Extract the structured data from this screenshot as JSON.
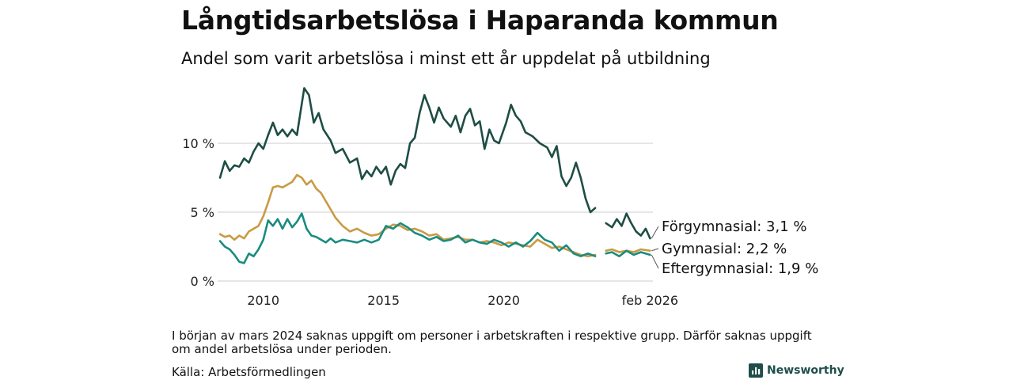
{
  "header": {
    "title": "Långtidsarbetslösa i Haparanda kommun",
    "subtitle": "Andel som varit arbetslösa i minst ett år uppdelat på utbildning"
  },
  "footer": {
    "note": "I början av mars 2024 saknas uppgift om personer i arbetskraften i respektive grupp. Därför saknas uppgift om andel arbetslösa under perioden.",
    "source": "Källa: Arbetsförmedlingen",
    "brand": "Newsworthy"
  },
  "colors": {
    "forgymnasial": "#1e4d44",
    "gymnasial": "#c99a45",
    "eftergymnasial": "#1a8c80",
    "grid": "#dddddd"
  },
  "chart_data": {
    "type": "line",
    "title": "Långtidsarbetslösa i Haparanda kommun",
    "ylabel": "",
    "xlabel": "",
    "ylim": [
      0,
      14
    ],
    "xlim": [
      2008.2,
      2026.2
    ],
    "yticks": [
      {
        "value": 0,
        "label": "0 %"
      },
      {
        "value": 5,
        "label": "5 %"
      },
      {
        "value": 10,
        "label": "10 %"
      }
    ],
    "xticks": [
      {
        "value": 2010,
        "label": "2010"
      },
      {
        "value": 2015,
        "label": "2015"
      },
      {
        "value": 2020,
        "label": "2020"
      },
      {
        "value": 2026.08,
        "label": "feb 2026"
      }
    ],
    "gap": [
      2024.05,
      2024.2
    ],
    "series": [
      {
        "name": "Förgymnasial",
        "color_key": "forgymnasial",
        "end_label": "Förgymnasial: 3,1 %",
        "points": [
          [
            2008.2,
            7.5
          ],
          [
            2008.4,
            8.7
          ],
          [
            2008.6,
            8.0
          ],
          [
            2008.8,
            8.4
          ],
          [
            2009.0,
            8.3
          ],
          [
            2009.2,
            8.9
          ],
          [
            2009.4,
            8.6
          ],
          [
            2009.6,
            9.4
          ],
          [
            2009.8,
            10.0
          ],
          [
            2010.0,
            9.6
          ],
          [
            2010.2,
            10.6
          ],
          [
            2010.4,
            11.5
          ],
          [
            2010.6,
            10.6
          ],
          [
            2010.8,
            11.0
          ],
          [
            2011.0,
            10.5
          ],
          [
            2011.2,
            11.0
          ],
          [
            2011.4,
            10.6
          ],
          [
            2011.7,
            14.0
          ],
          [
            2011.9,
            13.5
          ],
          [
            2012.1,
            11.5
          ],
          [
            2012.3,
            12.2
          ],
          [
            2012.5,
            11.0
          ],
          [
            2012.8,
            10.2
          ],
          [
            2013.0,
            9.3
          ],
          [
            2013.3,
            9.6
          ],
          [
            2013.6,
            8.6
          ],
          [
            2013.9,
            8.9
          ],
          [
            2014.1,
            7.4
          ],
          [
            2014.3,
            8.0
          ],
          [
            2014.5,
            7.6
          ],
          [
            2014.7,
            8.3
          ],
          [
            2014.9,
            7.8
          ],
          [
            2015.1,
            8.3
          ],
          [
            2015.3,
            7.0
          ],
          [
            2015.5,
            8.0
          ],
          [
            2015.7,
            8.5
          ],
          [
            2015.9,
            8.2
          ],
          [
            2016.1,
            10.0
          ],
          [
            2016.3,
            10.4
          ],
          [
            2016.5,
            12.2
          ],
          [
            2016.7,
            13.5
          ],
          [
            2016.9,
            12.6
          ],
          [
            2017.1,
            11.5
          ],
          [
            2017.3,
            12.6
          ],
          [
            2017.5,
            11.8
          ],
          [
            2017.8,
            11.2
          ],
          [
            2018.0,
            12.0
          ],
          [
            2018.2,
            10.8
          ],
          [
            2018.4,
            12.0
          ],
          [
            2018.6,
            12.5
          ],
          [
            2018.8,
            11.3
          ],
          [
            2019.0,
            11.6
          ],
          [
            2019.2,
            9.6
          ],
          [
            2019.4,
            11.0
          ],
          [
            2019.6,
            10.2
          ],
          [
            2019.8,
            10.0
          ],
          [
            2020.1,
            11.5
          ],
          [
            2020.3,
            12.8
          ],
          [
            2020.5,
            12.0
          ],
          [
            2020.7,
            11.6
          ],
          [
            2020.9,
            10.8
          ],
          [
            2021.2,
            10.5
          ],
          [
            2021.5,
            10.0
          ],
          [
            2021.8,
            9.7
          ],
          [
            2022.0,
            9.0
          ],
          [
            2022.2,
            9.8
          ],
          [
            2022.4,
            7.6
          ],
          [
            2022.6,
            6.9
          ],
          [
            2022.8,
            7.5
          ],
          [
            2023.0,
            8.6
          ],
          [
            2023.2,
            7.5
          ],
          [
            2023.4,
            6.0
          ],
          [
            2023.6,
            5.0
          ],
          [
            2023.8,
            5.3
          ],
          [
            2024.25,
            4.2
          ],
          [
            2024.5,
            3.9
          ],
          [
            2024.7,
            4.5
          ],
          [
            2024.9,
            4.0
          ],
          [
            2025.1,
            4.9
          ],
          [
            2025.3,
            4.2
          ],
          [
            2025.5,
            3.6
          ],
          [
            2025.7,
            3.3
          ],
          [
            2025.9,
            3.8
          ],
          [
            2026.08,
            3.1
          ]
        ]
      },
      {
        "name": "Gymnasial",
        "color_key": "gymnasial",
        "end_label": "Gymnasial: 2,2 %",
        "points": [
          [
            2008.2,
            3.4
          ],
          [
            2008.4,
            3.2
          ],
          [
            2008.6,
            3.3
          ],
          [
            2008.8,
            3.0
          ],
          [
            2009.0,
            3.3
          ],
          [
            2009.2,
            3.1
          ],
          [
            2009.4,
            3.6
          ],
          [
            2009.6,
            3.8
          ],
          [
            2009.8,
            4.0
          ],
          [
            2010.0,
            4.7
          ],
          [
            2010.2,
            5.7
          ],
          [
            2010.4,
            6.8
          ],
          [
            2010.6,
            6.9
          ],
          [
            2010.8,
            6.8
          ],
          [
            2011.0,
            7.0
          ],
          [
            2011.2,
            7.2
          ],
          [
            2011.4,
            7.7
          ],
          [
            2011.6,
            7.5
          ],
          [
            2011.8,
            7.0
          ],
          [
            2012.0,
            7.3
          ],
          [
            2012.2,
            6.7
          ],
          [
            2012.4,
            6.4
          ],
          [
            2012.6,
            5.8
          ],
          [
            2012.8,
            5.2
          ],
          [
            2013.0,
            4.6
          ],
          [
            2013.3,
            4.0
          ],
          [
            2013.6,
            3.6
          ],
          [
            2013.9,
            3.8
          ],
          [
            2014.2,
            3.5
          ],
          [
            2014.5,
            3.3
          ],
          [
            2014.8,
            3.4
          ],
          [
            2015.1,
            3.8
          ],
          [
            2015.4,
            4.1
          ],
          [
            2015.7,
            4.0
          ],
          [
            2016.0,
            3.7
          ],
          [
            2016.3,
            3.8
          ],
          [
            2016.6,
            3.6
          ],
          [
            2016.9,
            3.3
          ],
          [
            2017.2,
            3.4
          ],
          [
            2017.5,
            3.0
          ],
          [
            2017.8,
            3.1
          ],
          [
            2018.1,
            3.2
          ],
          [
            2018.4,
            3.0
          ],
          [
            2018.7,
            3.0
          ],
          [
            2019.0,
            2.8
          ],
          [
            2019.3,
            2.9
          ],
          [
            2019.6,
            2.8
          ],
          [
            2019.9,
            2.6
          ],
          [
            2020.2,
            2.8
          ],
          [
            2020.5,
            2.7
          ],
          [
            2020.8,
            2.6
          ],
          [
            2021.1,
            2.5
          ],
          [
            2021.4,
            3.0
          ],
          [
            2021.7,
            2.7
          ],
          [
            2022.0,
            2.4
          ],
          [
            2022.3,
            2.5
          ],
          [
            2022.6,
            2.3
          ],
          [
            2022.9,
            2.1
          ],
          [
            2023.2,
            1.9
          ],
          [
            2023.5,
            1.8
          ],
          [
            2023.8,
            1.9
          ],
          [
            2024.25,
            2.2
          ],
          [
            2024.5,
            2.3
          ],
          [
            2024.8,
            2.1
          ],
          [
            2025.1,
            2.2
          ],
          [
            2025.4,
            2.1
          ],
          [
            2025.7,
            2.3
          ],
          [
            2026.08,
            2.2
          ]
        ]
      },
      {
        "name": "Eftergymnasial",
        "color_key": "eftergymnasial",
        "end_label": "Eftergymnasial: 1,9 %",
        "points": [
          [
            2008.2,
            2.9
          ],
          [
            2008.4,
            2.5
          ],
          [
            2008.6,
            2.3
          ],
          [
            2008.8,
            1.9
          ],
          [
            2009.0,
            1.4
          ],
          [
            2009.2,
            1.3
          ],
          [
            2009.4,
            2.0
          ],
          [
            2009.6,
            1.8
          ],
          [
            2009.8,
            2.3
          ],
          [
            2010.0,
            3.0
          ],
          [
            2010.2,
            4.4
          ],
          [
            2010.4,
            4.0
          ],
          [
            2010.6,
            4.5
          ],
          [
            2010.8,
            3.8
          ],
          [
            2011.0,
            4.5
          ],
          [
            2011.2,
            3.9
          ],
          [
            2011.4,
            4.3
          ],
          [
            2011.6,
            4.9
          ],
          [
            2011.8,
            3.8
          ],
          [
            2012.0,
            3.3
          ],
          [
            2012.2,
            3.2
          ],
          [
            2012.4,
            3.0
          ],
          [
            2012.6,
            2.8
          ],
          [
            2012.8,
            3.1
          ],
          [
            2013.0,
            2.8
          ],
          [
            2013.3,
            3.0
          ],
          [
            2013.6,
            2.9
          ],
          [
            2013.9,
            2.8
          ],
          [
            2014.2,
            3.0
          ],
          [
            2014.5,
            2.8
          ],
          [
            2014.8,
            3.0
          ],
          [
            2015.1,
            4.0
          ],
          [
            2015.4,
            3.8
          ],
          [
            2015.7,
            4.2
          ],
          [
            2016.0,
            3.9
          ],
          [
            2016.3,
            3.5
          ],
          [
            2016.6,
            3.3
          ],
          [
            2016.9,
            3.0
          ],
          [
            2017.2,
            3.2
          ],
          [
            2017.5,
            2.9
          ],
          [
            2017.8,
            3.0
          ],
          [
            2018.1,
            3.3
          ],
          [
            2018.4,
            2.8
          ],
          [
            2018.7,
            3.0
          ],
          [
            2019.0,
            2.8
          ],
          [
            2019.3,
            2.7
          ],
          [
            2019.6,
            3.0
          ],
          [
            2019.9,
            2.8
          ],
          [
            2020.2,
            2.5
          ],
          [
            2020.5,
            2.8
          ],
          [
            2020.8,
            2.5
          ],
          [
            2021.1,
            2.9
          ],
          [
            2021.4,
            3.5
          ],
          [
            2021.7,
            3.0
          ],
          [
            2022.0,
            2.8
          ],
          [
            2022.3,
            2.2
          ],
          [
            2022.6,
            2.6
          ],
          [
            2022.9,
            2.0
          ],
          [
            2023.2,
            1.8
          ],
          [
            2023.5,
            2.0
          ],
          [
            2023.8,
            1.8
          ],
          [
            2024.25,
            2.0
          ],
          [
            2024.5,
            2.1
          ],
          [
            2024.8,
            1.8
          ],
          [
            2025.1,
            2.2
          ],
          [
            2025.4,
            1.9
          ],
          [
            2025.7,
            2.1
          ],
          [
            2026.08,
            1.9
          ]
        ]
      }
    ]
  }
}
